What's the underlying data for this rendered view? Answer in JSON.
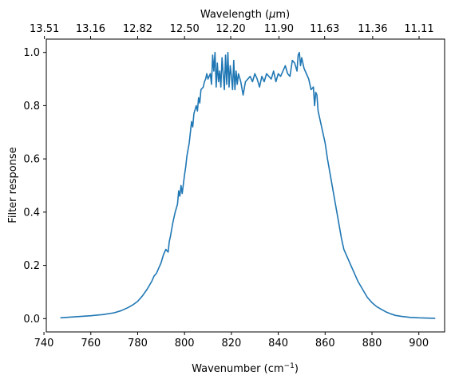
{
  "chart_data": {
    "type": "line",
    "xlabel": "Wavenumber (cm",
    "xlabel_sup": "−1",
    "xlabel_suffix": ")",
    "ylabel": "Filter response",
    "top_xlabel": "Wavelength (",
    "top_xlabel_mu": "μ",
    "top_xlabel_suffix": "m)",
    "xlim": [
      741,
      911
    ],
    "ylim": [
      -0.05,
      1.05
    ],
    "xticks": [
      740,
      760,
      780,
      800,
      820,
      840,
      860,
      880,
      900
    ],
    "yticks": [
      0.0,
      0.2,
      0.4,
      0.6,
      0.8,
      1.0
    ],
    "ytick_labels": [
      "0.0",
      "0.2",
      "0.4",
      "0.6",
      "0.8",
      "1.0"
    ],
    "top_xticks": [
      740.2,
      759.9,
      780.0,
      800.0,
      819.7,
      840.3,
      859.8,
      880.3,
      900.1
    ],
    "top_xtick_labels": [
      "13.51",
      "13.16",
      "12.82",
      "12.50",
      "12.20",
      "11.90",
      "11.63",
      "11.36",
      "11.11"
    ],
    "grid": false,
    "line_color": "#1f77b4",
    "series": [
      {
        "x": [
          747,
          750,
          755,
          760,
          765,
          770,
          773,
          776,
          778,
          780,
          782,
          784,
          786,
          787,
          788,
          789,
          790,
          791,
          792,
          793,
          793.5,
          794,
          795,
          796,
          797,
          797.5,
          798,
          798.5,
          799,
          800,
          800.5,
          801,
          802,
          802.5,
          803,
          803.5,
          804,
          805,
          805.5,
          806,
          806.5,
          807,
          808,
          808.5,
          809,
          809.5,
          810,
          811,
          811.5,
          812,
          812.5,
          813,
          813.5,
          814,
          814.5,
          815,
          815.5,
          816,
          816.5,
          817,
          817.5,
          818,
          818.5,
          819,
          819.5,
          820,
          820.5,
          821,
          821.5,
          822,
          822.5,
          823,
          824,
          825,
          826,
          827,
          828,
          829,
          830,
          831,
          832,
          833,
          834,
          835,
          836,
          837,
          838,
          839,
          840,
          841,
          842,
          843,
          844,
          845,
          846,
          847,
          848,
          848.5,
          849,
          849.5,
          850,
          851,
          852,
          853,
          854,
          855,
          855.5,
          856,
          856.5,
          857,
          858,
          859,
          860,
          861,
          862,
          863,
          864,
          865,
          866,
          867,
          868,
          870,
          872,
          874,
          876,
          878,
          880,
          882,
          884,
          886,
          888,
          890,
          893,
          896,
          900,
          904,
          907
        ],
        "y": [
          0.003,
          0.005,
          0.008,
          0.011,
          0.015,
          0.022,
          0.03,
          0.042,
          0.052,
          0.065,
          0.085,
          0.11,
          0.14,
          0.16,
          0.17,
          0.19,
          0.21,
          0.24,
          0.26,
          0.25,
          0.29,
          0.31,
          0.36,
          0.4,
          0.43,
          0.48,
          0.46,
          0.5,
          0.47,
          0.54,
          0.57,
          0.61,
          0.66,
          0.7,
          0.74,
          0.72,
          0.77,
          0.8,
          0.78,
          0.83,
          0.81,
          0.86,
          0.87,
          0.89,
          0.9,
          0.92,
          0.9,
          0.92,
          0.88,
          0.99,
          0.93,
          1.0,
          0.87,
          0.96,
          0.89,
          0.93,
          0.87,
          0.98,
          0.92,
          0.86,
          0.99,
          0.88,
          1.0,
          0.87,
          0.95,
          0.91,
          0.86,
          0.97,
          0.86,
          0.93,
          0.88,
          0.92,
          0.89,
          0.84,
          0.89,
          0.9,
          0.91,
          0.89,
          0.92,
          0.9,
          0.87,
          0.91,
          0.89,
          0.92,
          0.91,
          0.9,
          0.93,
          0.89,
          0.92,
          0.91,
          0.93,
          0.95,
          0.92,
          0.91,
          0.97,
          0.96,
          0.93,
          0.99,
          1.0,
          0.95,
          0.98,
          0.94,
          0.92,
          0.9,
          0.86,
          0.87,
          0.8,
          0.85,
          0.84,
          0.78,
          0.74,
          0.7,
          0.66,
          0.6,
          0.55,
          0.5,
          0.45,
          0.4,
          0.35,
          0.3,
          0.26,
          0.22,
          0.18,
          0.14,
          0.11,
          0.08,
          0.06,
          0.045,
          0.035,
          0.025,
          0.018,
          0.012,
          0.008,
          0.005,
          0.003,
          0.002,
          0.001
        ]
      }
    ]
  }
}
